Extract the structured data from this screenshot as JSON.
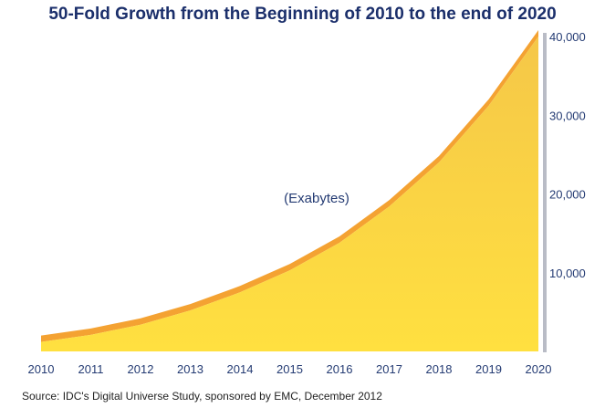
{
  "chart_data": {
    "type": "area",
    "title": "50-Fold Growth from the Beginning of 2010 to the end of 2020",
    "annotation": "(Exabytes)",
    "x": [
      "2010",
      "2011",
      "2012",
      "2013",
      "2014",
      "2015",
      "2016",
      "2017",
      "2018",
      "2019",
      "2020"
    ],
    "values": [
      1200,
      2100,
      3400,
      5200,
      7500,
      10300,
      13800,
      18400,
      24000,
      31200,
      40000
    ],
    "yticks": [
      "10,000",
      "20,000",
      "30,000",
      "40,000"
    ],
    "ytick_values": [
      10000,
      20000,
      30000,
      40000
    ],
    "ylim": [
      0,
      40000
    ],
    "grid": false,
    "colors": {
      "fill_top": "#f5c748",
      "fill_bottom": "#ffe040",
      "edge": "#f4a232",
      "axis": "#b9bcc6",
      "axis_label": "#243b73"
    }
  },
  "source": "Source: IDC's Digital Universe Study, sponsored by EMC, December 2012"
}
